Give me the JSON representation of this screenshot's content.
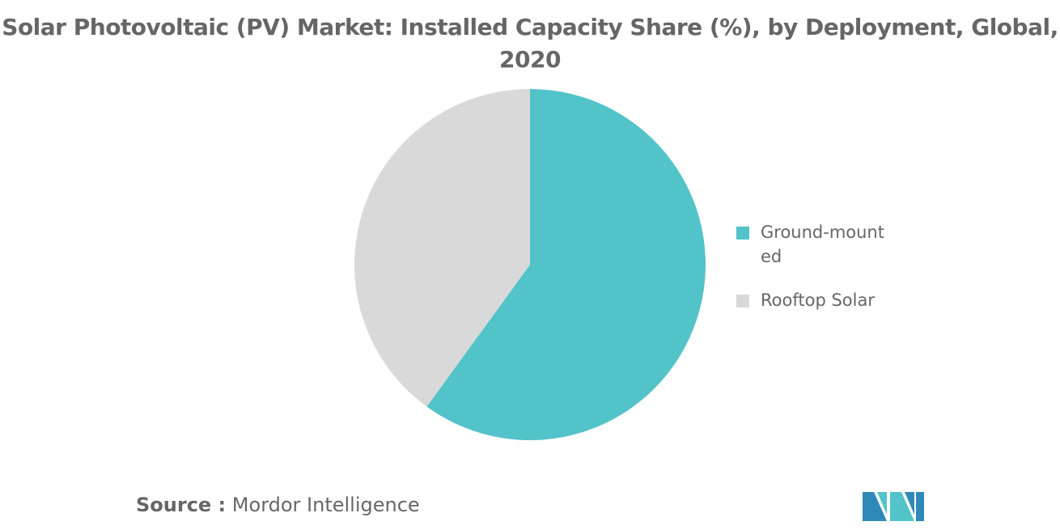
{
  "chart_data": {
    "type": "pie",
    "title_line1": "Solar Photovoltaic (PV) Market: Installed Capacity Share (%), by Deployment, Global,",
    "title_line2": "2020",
    "slices": [
      {
        "label": "Ground-mounted",
        "value": 60,
        "color": "#52C3C9"
      },
      {
        "label": "Rooftop Solar",
        "value": 40,
        "color": "#D9D9D9"
      }
    ],
    "legend_position": "right"
  },
  "source": {
    "label": "Source :",
    "text": "Mordor Intelligence"
  },
  "logo": {
    "icon": "mordor-intelligence-logo",
    "colors": [
      "#2F89B8",
      "#52C3C9"
    ]
  }
}
